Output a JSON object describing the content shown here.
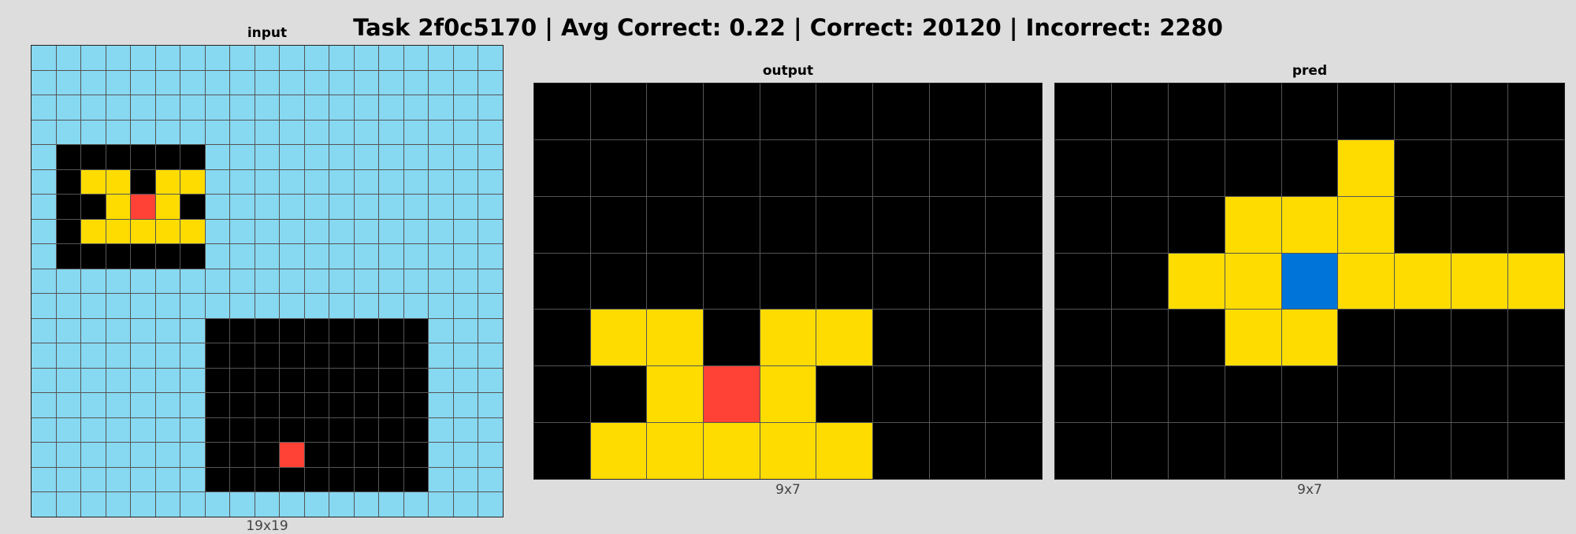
{
  "title": "Task 2f0c5170 | Avg Correct: 0.22 | Correct: 20120 | Incorrect: 2280",
  "colors": {
    "0": "#000000",
    "1": "#0074D9",
    "2": "#FF4136",
    "4": "#FFDC00",
    "8": "#87D8F1"
  },
  "panels": [
    {
      "name": "input",
      "label": "input",
      "dims": "19x19",
      "grid": [
        "8888888888888888888",
        "8888888888888888888",
        "8888888888888888888",
        "8888888888888888888",
        "8000000888888888888",
        "8044044888888888888",
        "8004240888888888888",
        "8044444888888888888",
        "8000000888888888888",
        "8888888888888888888",
        "8888888888888888888",
        "8888888000000000888",
        "8888888000000000888",
        "8888888000000000888",
        "8888888000000000888",
        "8888888000000000888",
        "8888888000200000888",
        "8888888000000000888",
        "8888888888888888888"
      ]
    },
    {
      "name": "output",
      "label": "output",
      "dims": "9x7",
      "grid": [
        "000000000",
        "000000000",
        "000000000",
        "000000000",
        "044044000",
        "004240000",
        "044444000"
      ]
    },
    {
      "name": "pred",
      "label": "pred",
      "dims": "9x7",
      "grid": [
        "000000000",
        "000004000",
        "000444000",
        "004414444",
        "000440000",
        "000000000",
        "000000000"
      ]
    }
  ]
}
